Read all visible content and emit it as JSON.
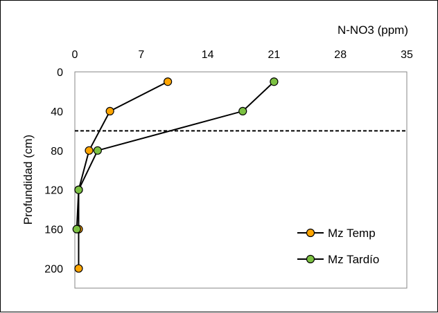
{
  "chart_data": {
    "type": "line",
    "title": "",
    "xlabel": "N-NO3 (ppm)",
    "ylabel": "Profundidad (cm)",
    "x_axis_position": "top",
    "y_axis_inverted": true,
    "xlim": [
      0,
      35
    ],
    "ylim": [
      0,
      220
    ],
    "x_ticks": [
      0,
      7,
      14,
      21,
      28,
      35
    ],
    "y_ticks": [
      0,
      40,
      80,
      120,
      160,
      200
    ],
    "grid": false,
    "legend_position": "bottom-right",
    "reference_line": {
      "type": "horizontal",
      "y": 60,
      "style": "dashed"
    },
    "series": [
      {
        "name": "Mz Temp",
        "color": "#FFA500",
        "points": [
          {
            "x": 9.8,
            "y": 10
          },
          {
            "x": 3.7,
            "y": 40
          },
          {
            "x": 1.5,
            "y": 80
          },
          {
            "x": 0.4,
            "y": 120
          },
          {
            "x": 0.4,
            "y": 160
          },
          {
            "x": 0.4,
            "y": 200
          }
        ]
      },
      {
        "name": "Mz Tardío",
        "color": "#7CC142",
        "points": [
          {
            "x": 21.0,
            "y": 10
          },
          {
            "x": 17.7,
            "y": 40
          },
          {
            "x": 2.4,
            "y": 80
          },
          {
            "x": 0.4,
            "y": 120
          },
          {
            "x": 0.2,
            "y": 160
          }
        ]
      }
    ]
  }
}
